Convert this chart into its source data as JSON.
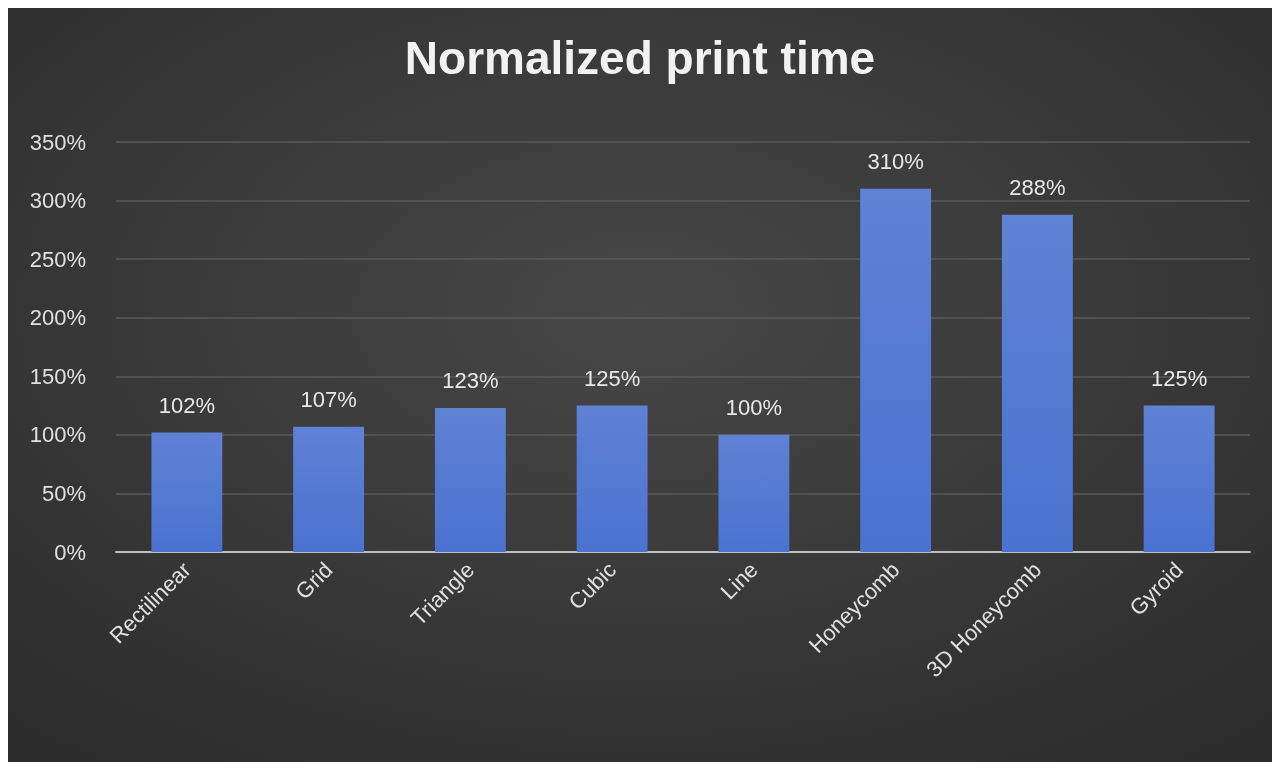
{
  "chart_data": {
    "type": "bar",
    "title": "Normalized print time",
    "categories": [
      "Rectilinear",
      "Grid",
      "Triangle",
      "Cubic",
      "Line",
      "Honeycomb",
      "3D Honeycomb",
      "Gyroid"
    ],
    "values": [
      102,
      107,
      123,
      125,
      100,
      310,
      288,
      125
    ],
    "value_labels": [
      "102%",
      "107%",
      "123%",
      "125%",
      "100%",
      "310%",
      "288%",
      "125%"
    ],
    "color": "#4a72d0",
    "ylim": [
      0,
      350
    ],
    "yticks": [
      {
        "value": 0,
        "label": "0%"
      },
      {
        "value": 50,
        "label": "50%"
      },
      {
        "value": 100,
        "label": "100%"
      },
      {
        "value": 150,
        "label": "150%"
      },
      {
        "value": 200,
        "label": "200%"
      },
      {
        "value": 250,
        "label": "250%"
      },
      {
        "value": 300,
        "label": "300%"
      },
      {
        "value": 350,
        "label": "350%"
      }
    ],
    "grid": "y"
  }
}
